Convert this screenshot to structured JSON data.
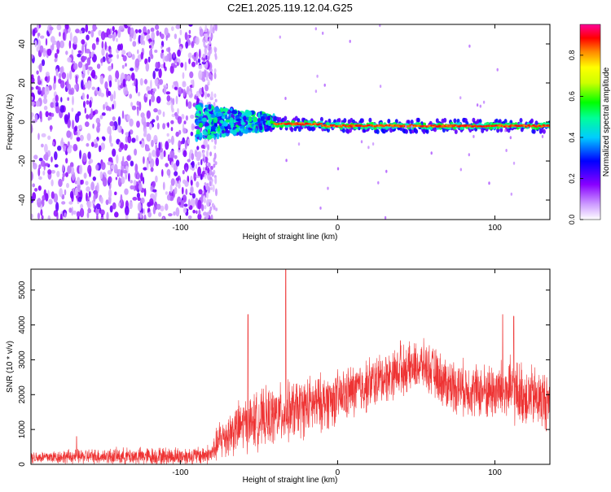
{
  "title": "C2E1.2025.119.12.04.G25",
  "chart_data": [
    {
      "type": "heatmap",
      "xlabel": "Height of straight line (km)",
      "ylabel": "Frequency (Hz)",
      "xlim": [
        -195,
        135
      ],
      "ylim": [
        -50,
        50
      ],
      "xticks": [
        -100,
        0,
        100
      ],
      "xtick_labels": [
        "-100",
        "0",
        "100"
      ],
      "yticks": [
        -40,
        -20,
        0,
        20,
        40
      ],
      "ytick_labels": [
        "-40",
        "-20",
        "0",
        "20",
        "40"
      ],
      "grid": false,
      "colorbar": {
        "label": "Normalized spectral amplitude",
        "range": [
          0,
          0.95
        ],
        "ticks": [
          0,
          0.2,
          0.4,
          0.6,
          0.8
        ],
        "tick_labels": [
          "0.0",
          "0.2",
          "0.4",
          "0.6",
          "0.8"
        ],
        "colormap": [
          "#ffffff",
          "#8800ff",
          "#0000ff",
          "#00ffff",
          "#00ff00",
          "#ffff00",
          "#ff8800",
          "#ff0000",
          "#ff00aa"
        ]
      },
      "regions": [
        {
          "x_range": [
            -195,
            -80
          ],
          "f_range": [
            -50,
            50
          ],
          "amplitude": 0.15,
          "pattern": "noise"
        },
        {
          "x_range": [
            -90,
            -45
          ],
          "f_range": [
            -12,
            12
          ],
          "amplitude": 0.3,
          "pattern": "band"
        },
        {
          "x_range": [
            -45,
            135
          ],
          "f_range": [
            -3,
            3
          ],
          "amplitude": 0.9,
          "pattern": "line",
          "center_hz": [
            0,
            -2
          ]
        }
      ]
    },
    {
      "type": "line",
      "xlabel": "Height of straight line (km)",
      "ylabel": "SNR (10 * v/v)",
      "xlim": [
        -195,
        135
      ],
      "ylim": [
        0,
        5600
      ],
      "xticks": [
        -100,
        0,
        100
      ],
      "xtick_labels": [
        "-100",
        "0",
        "100"
      ],
      "yticks": [
        0,
        1000,
        2000,
        3000,
        4000,
        5000
      ],
      "ytick_labels": [
        "0",
        "1000",
        "2000",
        "3000",
        "4000",
        "5000"
      ],
      "grid": false,
      "color": "#ee3333",
      "envelope": {
        "x": [
          -195,
          -160,
          -120,
          -90,
          -80,
          -75,
          -60,
          -40,
          -20,
          0,
          20,
          40,
          55,
          70,
          90,
          110,
          135
        ],
        "y": [
          200,
          230,
          230,
          240,
          300,
          700,
          1150,
          1400,
          1650,
          1900,
          2300,
          2700,
          2850,
          2300,
          2100,
          2100,
          1800
        ]
      },
      "spread": [
        200,
        250,
        300,
        300,
        350,
        700,
        900,
        1000,
        1000,
        900,
        900,
        800,
        800,
        900,
        900,
        1100,
        1000
      ],
      "peaks": [
        {
          "x": -166,
          "y": 800
        },
        {
          "x": -57,
          "y": 4300
        },
        {
          "x": -33,
          "y": 5600
        },
        {
          "x": 105,
          "y": 4300
        },
        {
          "x": 112,
          "y": 4250
        },
        {
          "x": 40,
          "y": 3550
        }
      ]
    }
  ]
}
